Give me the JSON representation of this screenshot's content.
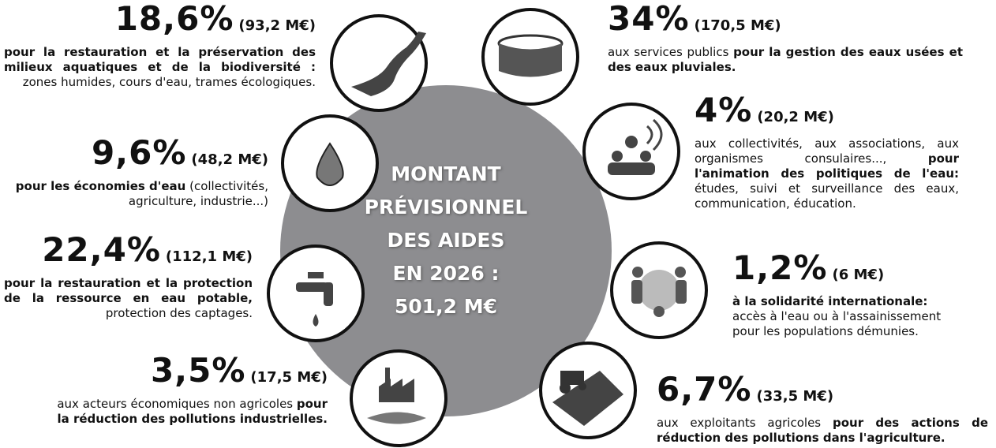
{
  "center": {
    "lines": [
      "MONTANT",
      "PRÉVISIONNEL",
      "DES AIDES",
      "EN 2026 :",
      "501,2 M€"
    ]
  },
  "items": [
    {
      "percent": "18,6%",
      "amount": "(93,2 M€)",
      "description": [
        {
          "text": "pour la restauration et la préservation des milieux aquatiques et de la biodiversité :",
          "bold": true
        },
        {
          "text": " zones humides, cours d'eau, trames écologiques.",
          "bold": false
        }
      ]
    },
    {
      "percent": "9,6%",
      "amount": "(48,2 M€)",
      "description": [
        {
          "text": "pour les économies d'eau",
          "bold": true
        },
        {
          "text": " (collectivités, agriculture, industrie...)",
          "bold": false
        }
      ]
    },
    {
      "percent": "22,4%",
      "amount": "(112,1 M€)",
      "description": [
        {
          "text": "pour la restauration et la protection de la ressource en eau potable,",
          "bold": true
        },
        {
          "text": " protection des captages.",
          "bold": false
        }
      ]
    },
    {
      "percent": "3,5%",
      "amount": "(17,5 M€)",
      "description": [
        {
          "text": "aux acteurs économiques non agricoles ",
          "bold": false
        },
        {
          "text": "pour la réduction des pollutions industrielles.",
          "bold": true
        }
      ]
    },
    {
      "percent": "34%",
      "amount": "(170,5 M€)",
      "description": [
        {
          "text": "aux services publics ",
          "bold": false
        },
        {
          "text": "pour la gestion des eaux usées et des eaux pluviales.",
          "bold": true
        }
      ]
    },
    {
      "percent": "4%",
      "amount": "(20,2 M€)",
      "description": [
        {
          "text": "aux collectivités, aux associations, aux organismes consulaires..., ",
          "bold": false
        },
        {
          "text": "pour l'animation des politiques de l'eau:",
          "bold": true
        },
        {
          "text": " études, suivi et surveillance des eaux, communication, éducation.",
          "bold": false
        }
      ]
    },
    {
      "percent": "1,2%",
      "amount": "(6 M€)",
      "description": [
        {
          "text": "à la solidarité internationale:",
          "bold": true
        },
        {
          "text": " accès à l'eau ou à l'assainissement pour les populations démunies.",
          "bold": false
        }
      ]
    },
    {
      "percent": "6,7%",
      "amount": "(33,5 M€)",
      "description": [
        {
          "text": "aux exploitants agricoles ",
          "bold": false
        },
        {
          "text": "pour des actions de réduction des pollutions dans l'agriculture.",
          "bold": true
        }
      ]
    }
  ]
}
